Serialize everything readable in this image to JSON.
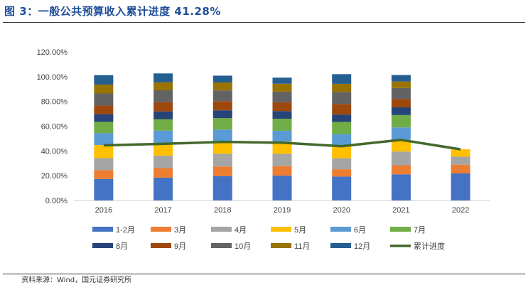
{
  "figure": {
    "title": "图 3：一般公共预算收入累计进度 41.28%",
    "source": "资料来源：Wind，国元证券研究所"
  },
  "colors": {
    "1-2月": "#4472c4",
    "3月": "#ed7d31",
    "4月": "#a5a5a5",
    "5月": "#ffc000",
    "6月": "#5b9bd5",
    "7月": "#70ad47",
    "8月": "#264478",
    "9月": "#9e480e",
    "10月": "#636363",
    "11月": "#997300",
    "12月": "#255e91",
    "累计进度": "#43682b",
    "axis": "#d9d9d9",
    "text": "#404040"
  },
  "chart_data": {
    "type": "bar",
    "stacked": true,
    "categories": [
      "2016",
      "2017",
      "2018",
      "2019",
      "2020",
      "2021",
      "2022"
    ],
    "ylim": [
      0,
      120
    ],
    "yticks": [
      "0.00%",
      "20.00%",
      "40.00%",
      "60.00%",
      "80.00%",
      "100.00%",
      "120.00%"
    ],
    "grid": false,
    "legend_position": "bottom",
    "series": [
      {
        "name": "1-2月",
        "values": [
          17.3,
          18.4,
          19.7,
          20.0,
          19.3,
          21.1,
          21.8
        ]
      },
      {
        "name": "3月",
        "values": [
          7.2,
          7.7,
          7.7,
          7.7,
          5.9,
          7.3,
          7.1
        ]
      },
      {
        "name": "4月",
        "values": [
          9.7,
          10.1,
          10.3,
          10.0,
          8.9,
          11.1,
          6.4
        ]
      },
      {
        "name": "5月",
        "values": [
          10.6,
          9.9,
          10.0,
          9.9,
          9.3,
          9.5,
          6.0
        ]
      },
      {
        "name": "6月",
        "values": [
          9.5,
          10.3,
          9.5,
          8.7,
          10.0,
          10.0,
          null
        ]
      },
      {
        "name": "7月",
        "values": [
          9.2,
          9.1,
          9.3,
          9.7,
          10.0,
          10.0,
          null
        ]
      },
      {
        "name": "8月",
        "values": [
          6.2,
          6.4,
          6.3,
          6.2,
          6.0,
          6.2,
          null
        ]
      },
      {
        "name": "9月",
        "values": [
          7.0,
          7.4,
          7.4,
          7.0,
          8.5,
          6.8,
          null
        ]
      },
      {
        "name": "10月",
        "values": [
          9.7,
          9.7,
          8.7,
          8.7,
          9.6,
          8.9,
          null
        ]
      },
      {
        "name": "11月",
        "values": [
          7.2,
          6.4,
          6.4,
          6.4,
          6.7,
          5.2,
          null
        ]
      },
      {
        "name": "12月",
        "values": [
          7.6,
          7.2,
          5.5,
          4.9,
          7.8,
          5.2,
          null
        ]
      }
    ],
    "line": {
      "name": "累计进度",
      "values": [
        44.5,
        45.7,
        47.3,
        46.6,
        43.8,
        48.9,
        41.28
      ]
    }
  }
}
